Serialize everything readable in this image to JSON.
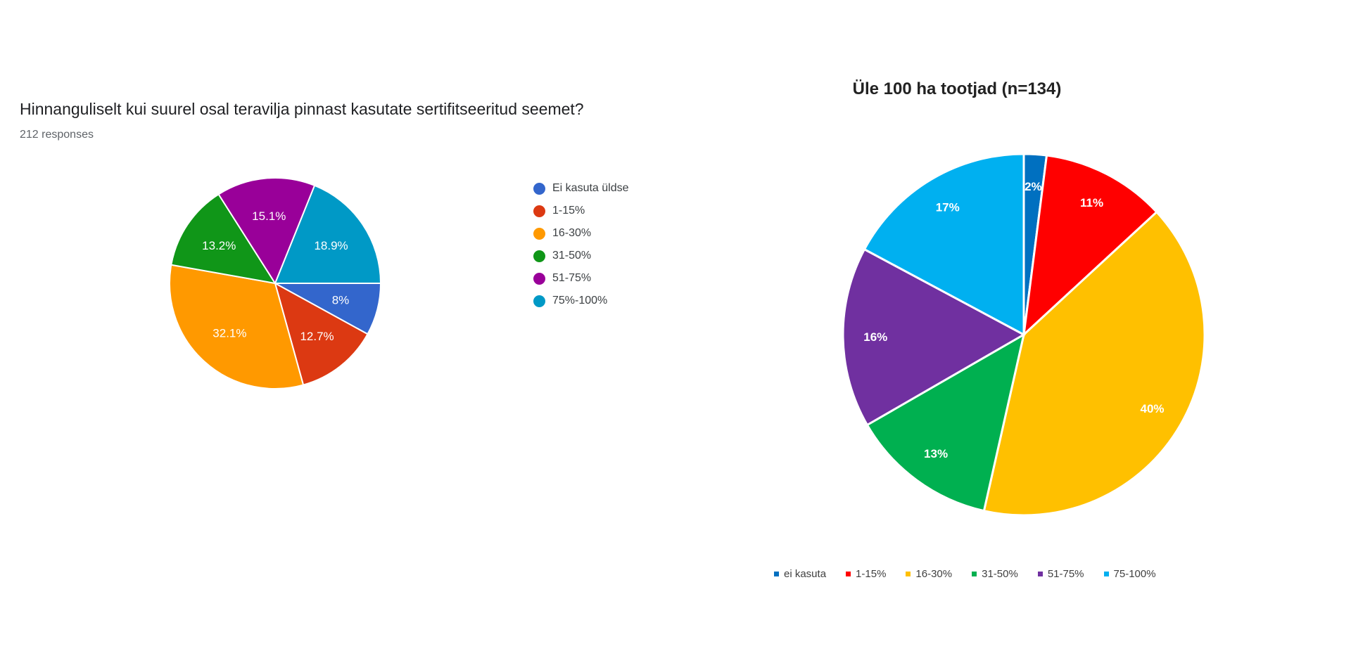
{
  "chart_data": [
    {
      "type": "pie",
      "title": "Hinnanguliselt kui suurel osal teravilja pinnast kasutate sertifitseeritud seemet?",
      "subtitle": "212 responses",
      "categories": [
        "Ei kasuta üldse",
        "1-15%",
        "16-30%",
        "31-50%",
        "51-75%",
        "75%-100%"
      ],
      "values": [
        8,
        12.7,
        32.1,
        13.2,
        15.1,
        18.9
      ],
      "data_labels": [
        "8%",
        "12.7%",
        "32.1%",
        "13.2%",
        "15.1%",
        "18.9%"
      ],
      "colors": [
        "#3366cc",
        "#dc3912",
        "#ff9900",
        "#109618",
        "#990099",
        "#0099c6"
      ],
      "legend_position": "right"
    },
    {
      "type": "pie",
      "title": "Üle 100 ha tootjad (n=134)",
      "categories": [
        "ei kasuta",
        "1-15%",
        "16-30%",
        "31-50%",
        "51-75%",
        "75-100%"
      ],
      "values": [
        2,
        11,
        40,
        13,
        16,
        17
      ],
      "data_labels": [
        "2%",
        "11%",
        "40%",
        "13%",
        "16%",
        "17%"
      ],
      "colors": [
        "#0070c0",
        "#ff0000",
        "#ffc000",
        "#00b050",
        "#7030a0",
        "#00b0f0"
      ],
      "legend_position": "bottom"
    }
  ]
}
